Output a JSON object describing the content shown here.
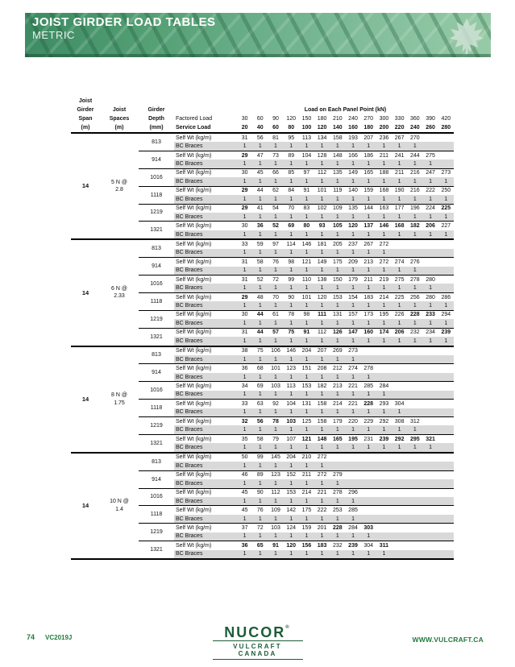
{
  "banner": {
    "title": "JOIST GIRDER LOAD TABLES",
    "subtitle": "METRIC"
  },
  "footer": {
    "page_number": "74",
    "doc_code": "VC2019J",
    "website": "WWW.VULCRAFT.CA",
    "logo_name": "NUCOR",
    "logo_registered": "®",
    "logo_sub": "VULCRAFT CANADA"
  },
  "table": {
    "row_labels": {
      "self_wt": "Self Wt (kg/m)",
      "bc_braces": "BC Braces"
    },
    "headers": {
      "span": [
        "Joist",
        "Girder",
        "Span",
        "(m)"
      ],
      "spaces": [
        "Joist",
        "Spaces",
        "(m)"
      ],
      "depth": [
        "Girder",
        "Depth",
        "(mm)"
      ],
      "factored_label": "Factored Load",
      "service_label": "Service Load",
      "panel": "Load on Each Panel Point (kN)",
      "factored": [
        "30",
        "60",
        "90",
        "120",
        "150",
        "180",
        "210",
        "240",
        "270",
        "300",
        "330",
        "360",
        "390",
        "420"
      ],
      "service": [
        "20",
        "40",
        "60",
        "80",
        "100",
        "120",
        "140",
        "160",
        "180",
        "200",
        "220",
        "240",
        "260",
        "280"
      ]
    },
    "sections": [
      {
        "span": "14",
        "spaces": [
          "5 N @",
          "2.8"
        ],
        "groups": [
          {
            "depth": "813",
            "self_wt": [
              "31",
              "56",
              "81",
              "95",
              "113",
              "134",
              "158",
              "193",
              "207",
              "236",
              "267",
              "270"
            ],
            "bold": [],
            "braces": 12
          },
          {
            "depth": "914",
            "self_wt": [
              "29",
              "47",
              "73",
              "89",
              "104",
              "128",
              "148",
              "166",
              "186",
              "211",
              "241",
              "244",
              "275"
            ],
            "bold": [
              0
            ],
            "braces": 13
          },
          {
            "depth": "1016",
            "self_wt": [
              "30",
              "45",
              "66",
              "85",
              "97",
              "112",
              "135",
              "149",
              "165",
              "188",
              "211",
              "216",
              "247",
              "273"
            ],
            "bold": [],
            "braces": 14
          },
          {
            "depth": "1118",
            "self_wt": [
              "29",
              "44",
              "62",
              "84",
              "91",
              "101",
              "119",
              "140",
              "159",
              "168",
              "190",
              "216",
              "222",
              "250"
            ],
            "bold": [
              0
            ],
            "braces": 14
          },
          {
            "depth": "1219",
            "self_wt": [
              "29",
              "41",
              "54",
              "70",
              "83",
              "102",
              "109",
              "135",
              "144",
              "163",
              "177",
              "196",
              "224",
              "225"
            ],
            "bold": [
              0,
              13
            ],
            "braces": 14
          },
          {
            "depth": "1321",
            "self_wt": [
              "30",
              "36",
              "52",
              "69",
              "80",
              "93",
              "105",
              "120",
              "137",
              "146",
              "168",
              "182",
              "206",
              "227"
            ],
            "bold": [
              1,
              2,
              3,
              4,
              5,
              6,
              7,
              8,
              9,
              10,
              11,
              12
            ],
            "braces": 14
          }
        ]
      },
      {
        "span": "14",
        "spaces": [
          "6 N @",
          "2.33"
        ],
        "groups": [
          {
            "depth": "813",
            "self_wt": [
              "33",
              "59",
              "97",
              "114",
              "146",
              "181",
              "205",
              "237",
              "267",
              "272"
            ],
            "bold": [],
            "braces": 10
          },
          {
            "depth": "914",
            "self_wt": [
              "31",
              "58",
              "76",
              "98",
              "121",
              "149",
              "175",
              "209",
              "213",
              "272",
              "274",
              "276"
            ],
            "bold": [],
            "braces": 12
          },
          {
            "depth": "1016",
            "self_wt": [
              "31",
              "52",
              "72",
              "99",
              "110",
              "138",
              "150",
              "179",
              "211",
              "219",
              "275",
              "278",
              "280"
            ],
            "bold": [],
            "braces": 13
          },
          {
            "depth": "1118",
            "self_wt": [
              "29",
              "48",
              "70",
              "90",
              "101",
              "120",
              "153",
              "154",
              "183",
              "214",
              "225",
              "256",
              "280",
              "286"
            ],
            "bold": [
              0
            ],
            "braces": 14
          },
          {
            "depth": "1219",
            "self_wt": [
              "30",
              "44",
              "61",
              "78",
              "98",
              "111",
              "131",
              "157",
              "173",
              "195",
              "226",
              "228",
              "233",
              "294"
            ],
            "bold": [
              1,
              5,
              11,
              12
            ],
            "braces": 14
          },
          {
            "depth": "1321",
            "self_wt": [
              "31",
              "44",
              "57",
              "75",
              "91",
              "112",
              "126",
              "147",
              "160",
              "174",
              "206",
              "232",
              "234",
              "239"
            ],
            "bold": [
              1,
              2,
              3,
              4,
              6,
              7,
              8,
              9,
              10,
              13
            ],
            "braces": 14
          }
        ]
      },
      {
        "span": "14",
        "spaces": [
          "8 N @",
          "1.75"
        ],
        "groups": [
          {
            "depth": "813",
            "self_wt": [
              "38",
              "75",
              "106",
              "146",
              "204",
              "207",
              "269",
              "273"
            ],
            "bold": [],
            "braces": 8
          },
          {
            "depth": "914",
            "self_wt": [
              "36",
              "68",
              "101",
              "123",
              "151",
              "208",
              "212",
              "274",
              "278"
            ],
            "bold": [],
            "braces": 9
          },
          {
            "depth": "1016",
            "self_wt": [
              "34",
              "69",
              "103",
              "113",
              "153",
              "182",
              "213",
              "221",
              "285",
              "284"
            ],
            "bold": [],
            "braces": 10
          },
          {
            "depth": "1118",
            "self_wt": [
              "33",
              "63",
              "92",
              "104",
              "131",
              "158",
              "214",
              "221",
              "228",
              "293",
              "304"
            ],
            "bold": [
              8
            ],
            "braces": 11
          },
          {
            "depth": "1219",
            "self_wt": [
              "32",
              "56",
              "78",
              "103",
              "125",
              "158",
              "179",
              "220",
              "229",
              "292",
              "308",
              "312"
            ],
            "bold": [
              0,
              1,
              2,
              3
            ],
            "braces": 12
          },
          {
            "depth": "1321",
            "self_wt": [
              "35",
              "58",
              "79",
              "107",
              "121",
              "148",
              "165",
              "195",
              "231",
              "239",
              "292",
              "295",
              "321"
            ],
            "bold": [
              4,
              5,
              6,
              7,
              9,
              10,
              11,
              12
            ],
            "braces": 13
          }
        ]
      },
      {
        "span": "14",
        "spaces": [
          "10 N @",
          "1.4"
        ],
        "groups": [
          {
            "depth": "813",
            "self_wt": [
              "50",
              "99",
              "145",
              "204",
              "210",
              "272"
            ],
            "bold": [],
            "braces": 6
          },
          {
            "depth": "914",
            "self_wt": [
              "46",
              "89",
              "123",
              "152",
              "211",
              "272",
              "279"
            ],
            "bold": [],
            "braces": 7
          },
          {
            "depth": "1016",
            "self_wt": [
              "45",
              "90",
              "112",
              "153",
              "214",
              "221",
              "278",
              "296"
            ],
            "bold": [],
            "braces": 8
          },
          {
            "depth": "1118",
            "self_wt": [
              "45",
              "76",
              "109",
              "142",
              "175",
              "222",
              "253",
              "285"
            ],
            "bold": [],
            "braces": 8
          },
          {
            "depth": "1219",
            "self_wt": [
              "37",
              "72",
              "103",
              "124",
              "159",
              "201",
              "228",
              "284",
              "303"
            ],
            "bold": [
              6,
              8
            ],
            "braces": 9
          },
          {
            "depth": "1321",
            "self_wt": [
              "36",
              "65",
              "91",
              "120",
              "156",
              "183",
              "232",
              "239",
              "304",
              "311"
            ],
            "bold": [
              0,
              1,
              2,
              3,
              4,
              5,
              7,
              9
            ],
            "braces": 10
          }
        ]
      }
    ]
  }
}
